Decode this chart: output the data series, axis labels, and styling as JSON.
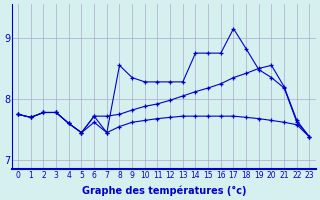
{
  "title": "",
  "xlabel": "Graphe des températures (°c)",
  "ylabel": "",
  "background_color": "#d6f0f0",
  "line_color": "#0000cc",
  "grid_color": "#aaaacc",
  "hours": [
    0,
    1,
    2,
    3,
    4,
    5,
    6,
    7,
    8,
    9,
    10,
    11,
    12,
    13,
    14,
    15,
    16,
    17,
    18,
    19,
    20,
    21,
    22,
    23
  ],
  "line1_jagged": [
    7.75,
    7.7,
    7.78,
    7.78,
    7.6,
    7.45,
    7.72,
    7.45,
    8.55,
    8.35,
    8.28,
    8.28,
    8.28,
    8.28,
    8.75,
    8.75,
    8.75,
    9.15,
    8.82,
    8.48,
    8.35,
    8.18,
    7.62,
    7.38
  ],
  "line2_upper": [
    7.75,
    7.7,
    7.78,
    7.78,
    7.6,
    7.45,
    7.72,
    7.72,
    7.75,
    7.82,
    7.88,
    7.92,
    7.98,
    8.05,
    8.12,
    8.18,
    8.25,
    8.35,
    8.42,
    8.5,
    8.55,
    8.2,
    7.65,
    7.38
  ],
  "line3_lower": [
    7.75,
    7.7,
    7.78,
    7.78,
    7.6,
    7.45,
    7.62,
    7.45,
    7.55,
    7.62,
    7.65,
    7.68,
    7.7,
    7.72,
    7.72,
    7.72,
    7.72,
    7.72,
    7.7,
    7.68,
    7.65,
    7.62,
    7.58,
    7.38
  ],
  "ylim": [
    6.85,
    9.55
  ],
  "yticks": [
    7,
    8,
    9
  ],
  "xticks": [
    0,
    1,
    2,
    3,
    4,
    5,
    6,
    7,
    8,
    9,
    10,
    11,
    12,
    13,
    14,
    15,
    16,
    17,
    18,
    19,
    20,
    21,
    22,
    23
  ]
}
